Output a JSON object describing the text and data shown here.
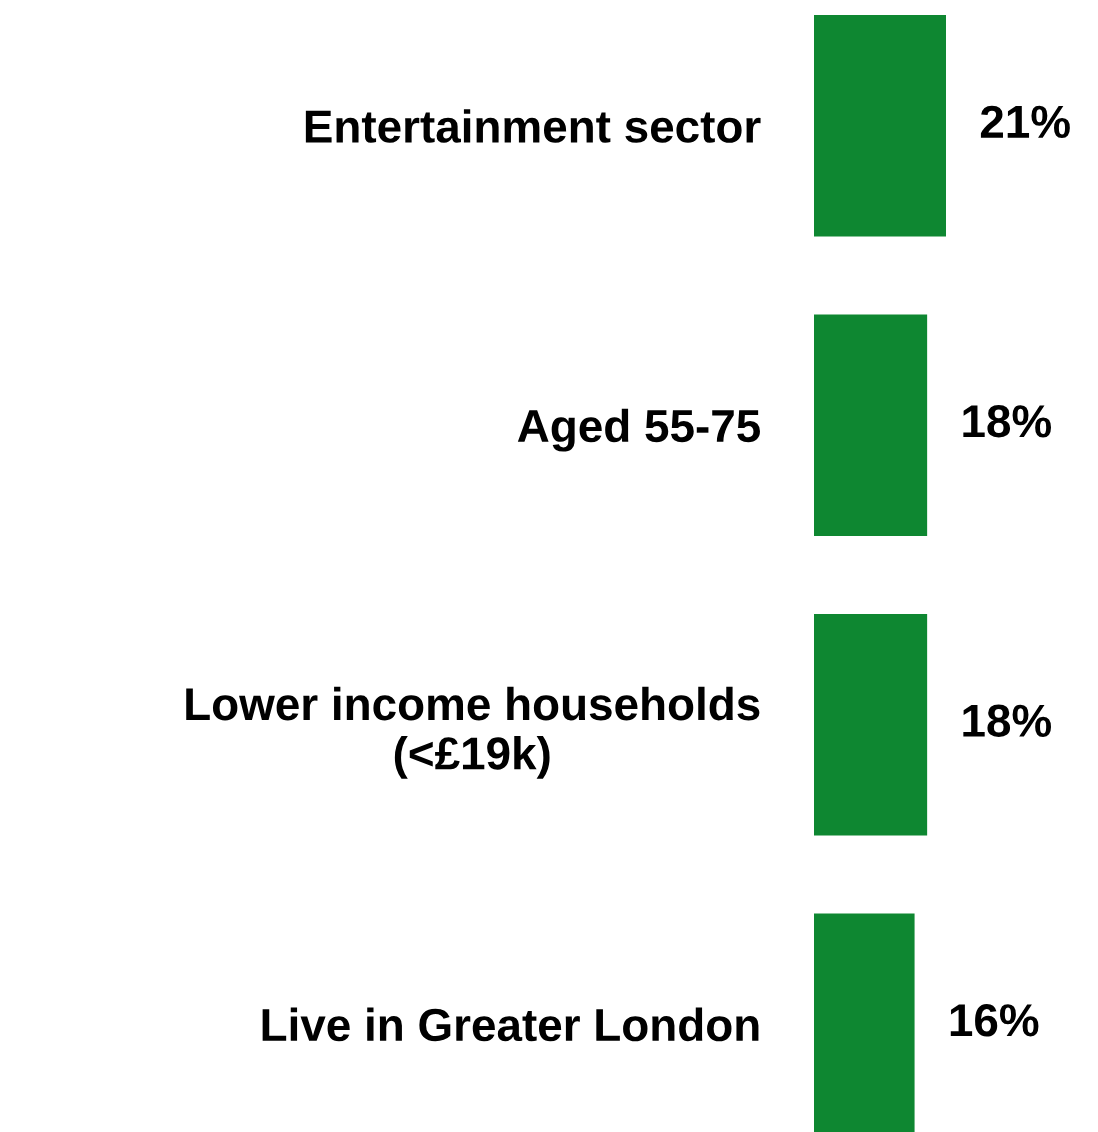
{
  "chart_data": {
    "type": "bar",
    "orientation": "horizontal",
    "categories": [
      "Entertainment sector",
      "Aged 55-75",
      "Lower income households\n(<£19k)",
      "Live in Greater London"
    ],
    "values": [
      21,
      18,
      18,
      16
    ],
    "value_labels": [
      "21%",
      "18%",
      "18%",
      "16%"
    ],
    "color": "#0e8731",
    "grid": false,
    "legend": false
  }
}
